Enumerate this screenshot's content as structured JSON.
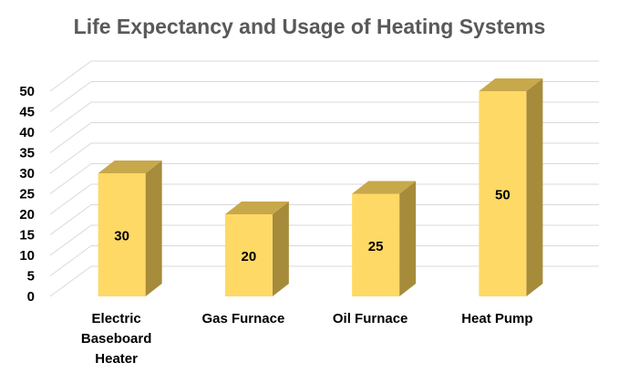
{
  "chart_data": {
    "type": "bar",
    "title": "Life Expectancy and Usage of Heating Systems",
    "categories": [
      [
        "Electric",
        "Baseboard",
        "Heater"
      ],
      [
        "Gas Furnace"
      ],
      [
        "Oil Furnace"
      ],
      [
        "Heat Pump"
      ]
    ],
    "values": [
      30,
      20,
      25,
      50
    ],
    "ylim": [
      0,
      50
    ],
    "yticks": [
      "0",
      "5",
      "10",
      "15",
      "20",
      "25",
      "30",
      "35",
      "40",
      "45",
      "50"
    ],
    "grid": true,
    "three_d": true,
    "colors": {
      "front": "#FFD966",
      "side": "#A68B3A",
      "top": "#C7A84B",
      "grid": "#D9D9D9"
    }
  }
}
